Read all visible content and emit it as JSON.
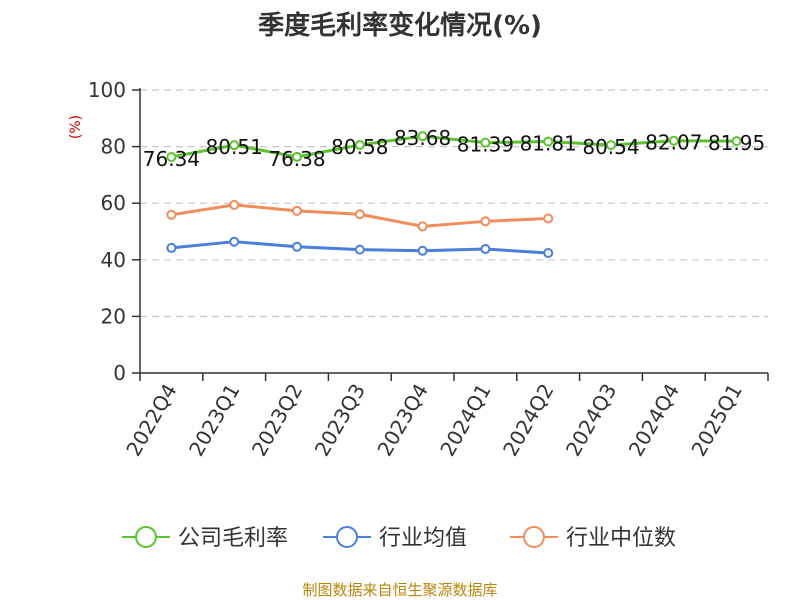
{
  "chart_data": {
    "type": "line",
    "title": "季度毛利率变化情况(%)",
    "unit": "(%)",
    "categories": [
      "2022Q4",
      "2023Q1",
      "2023Q2",
      "2023Q3",
      "2023Q4",
      "2024Q1",
      "2024Q2",
      "2024Q3",
      "2024Q4",
      "2025Q1"
    ],
    "ylim": [
      0,
      100
    ],
    "yticks": [
      0,
      20,
      40,
      60,
      80,
      100
    ],
    "grid": true,
    "legend_position": "bottom",
    "series": [
      {
        "name": "公司毛利率",
        "color": "#5cc22e",
        "values": [
          76.34,
          80.51,
          76.38,
          80.58,
          83.68,
          81.39,
          81.81,
          80.54,
          82.07,
          81.95
        ],
        "labels": [
          "76.34",
          "80.51",
          "76.38",
          "80.58",
          "83.68",
          "81.39",
          "81.81",
          "80.54",
          "82.07",
          "81.95"
        ]
      },
      {
        "name": "行业均值",
        "color": "#4a7fdc",
        "values": [
          44.2,
          46.4,
          44.6,
          43.6,
          43.2,
          43.8,
          42.4,
          null,
          null,
          null
        ]
      },
      {
        "name": "行业中位数",
        "color": "#f28c5a",
        "values": [
          55.9,
          59.4,
          57.3,
          56.1,
          51.8,
          53.6,
          54.6,
          null,
          null,
          null
        ]
      }
    ],
    "source": "制图数据来自恒生聚源数据库"
  }
}
